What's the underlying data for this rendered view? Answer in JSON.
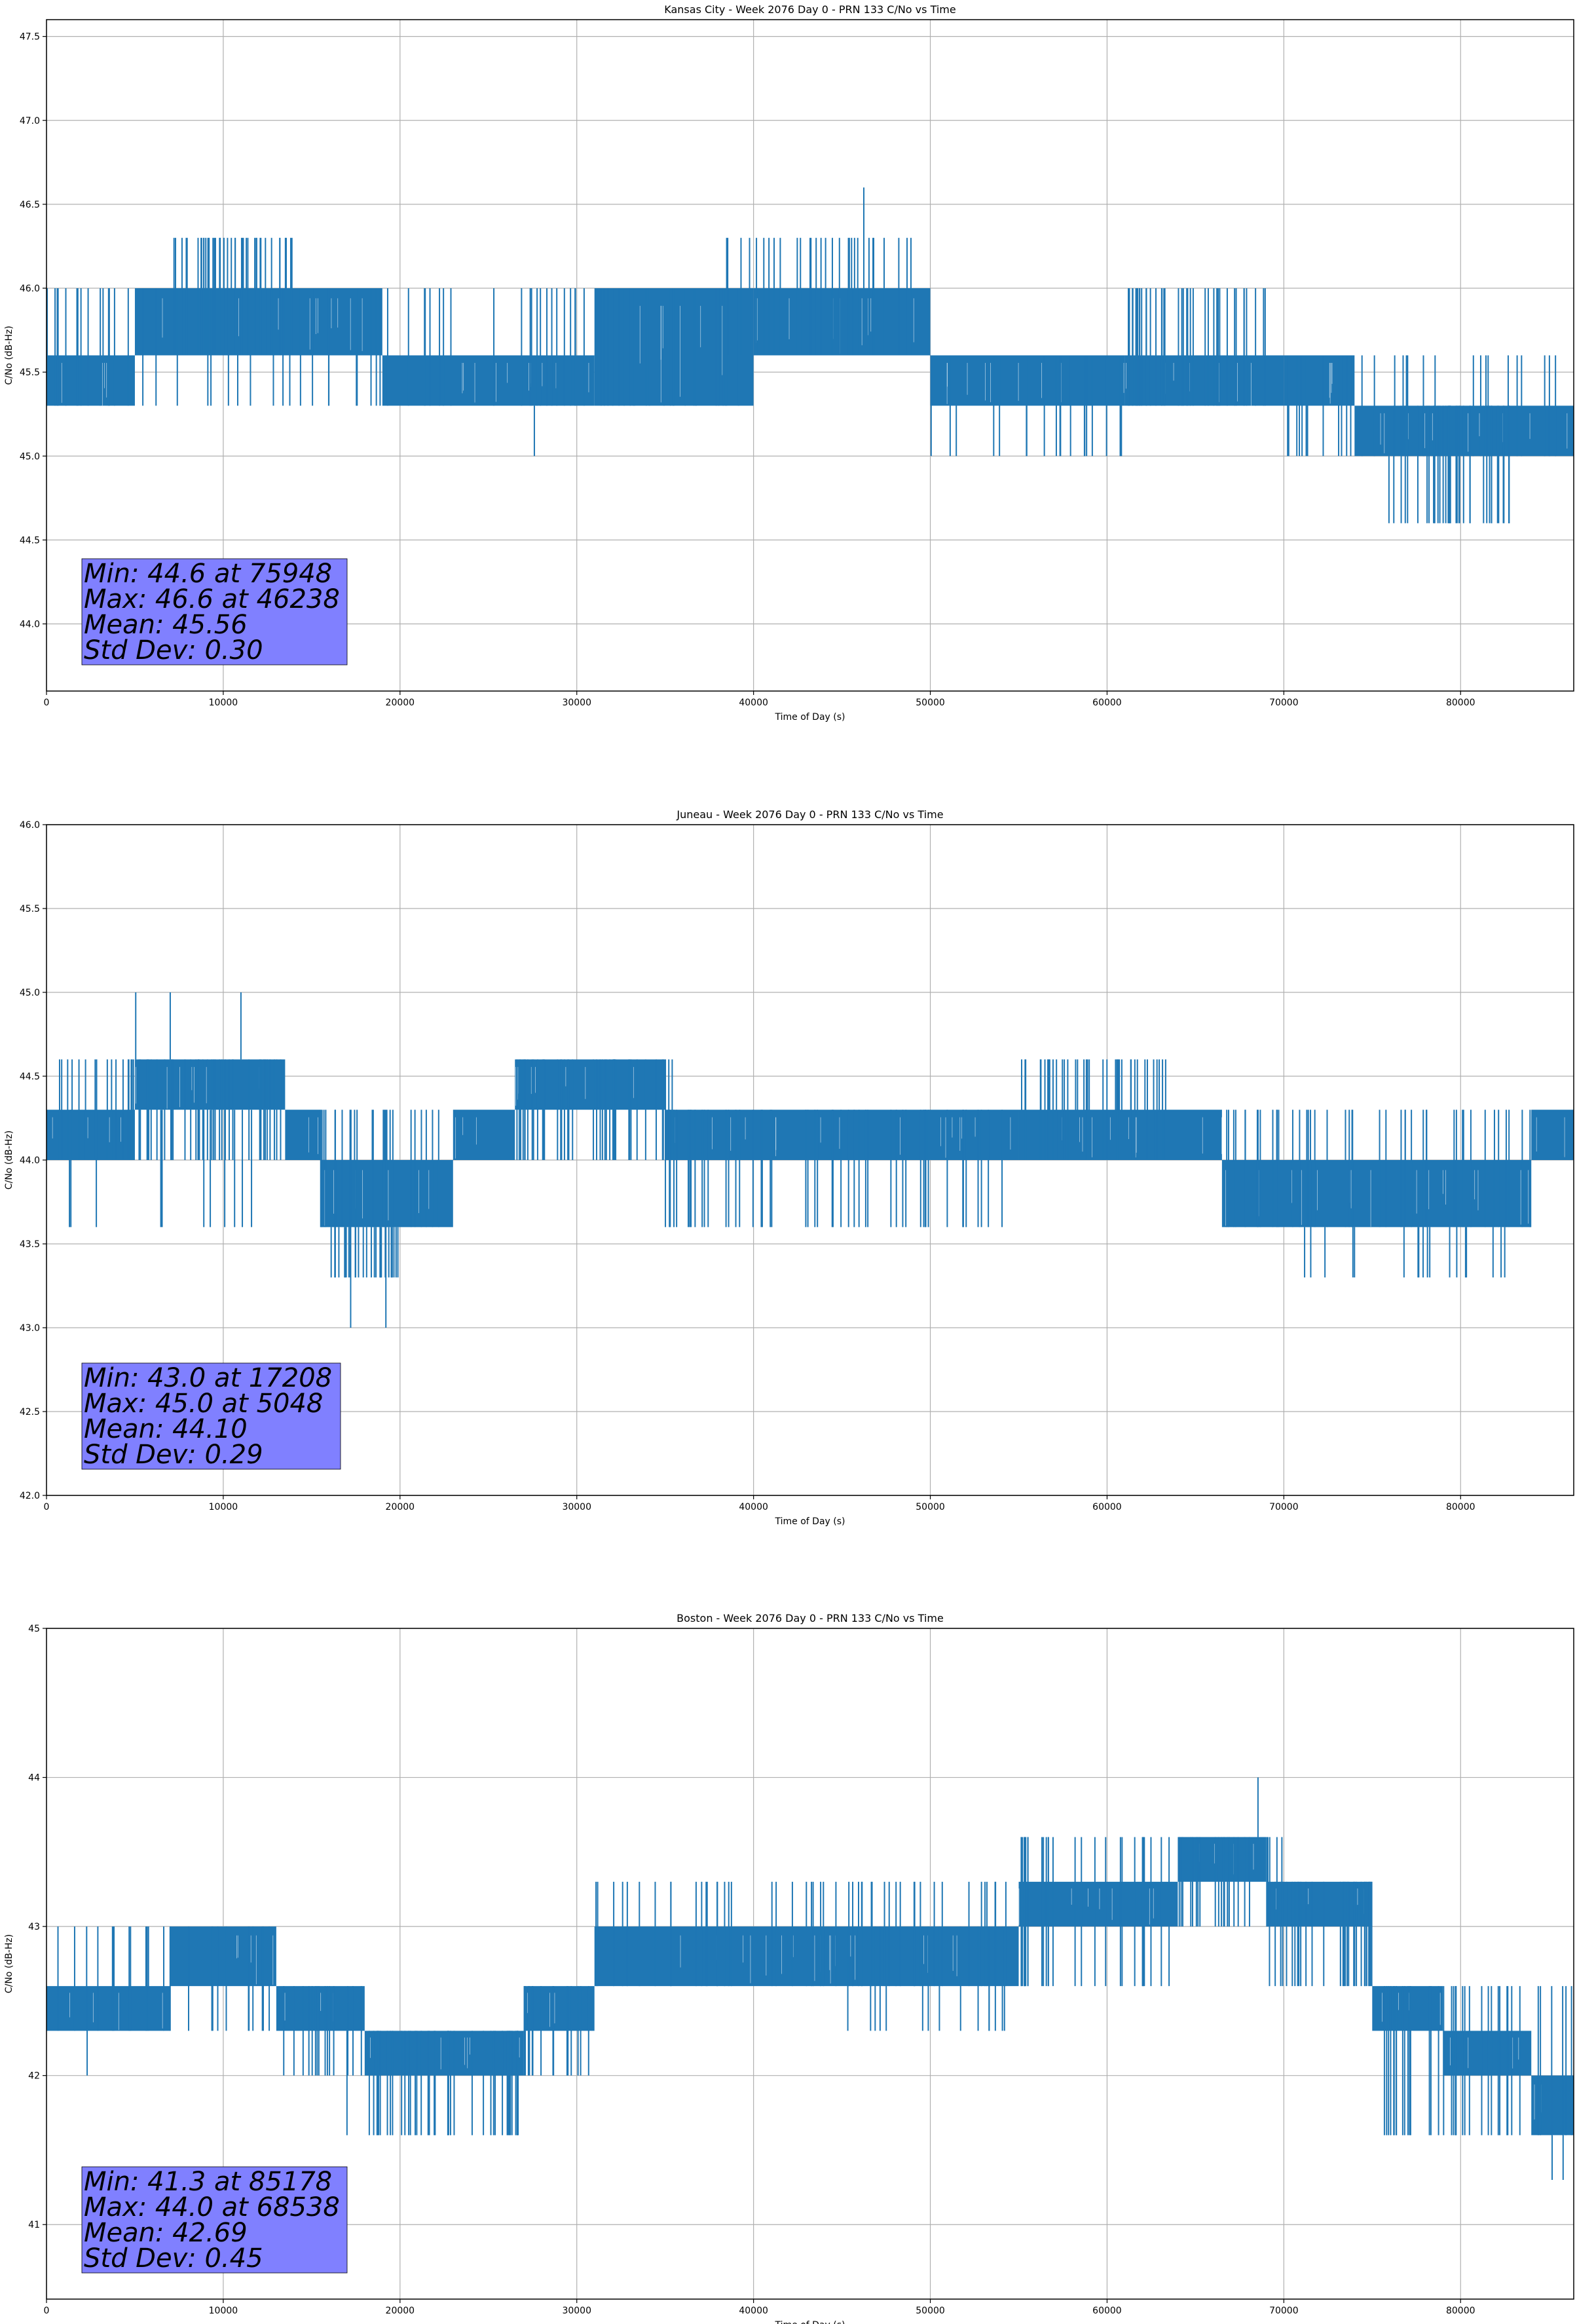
{
  "chart_data": [
    {
      "type": "line",
      "title": "Kansas City - Week 2076 Day 0 - PRN 133 C/No vs Time",
      "xlabel": "Time of Day (s)",
      "ylabel": "C/No (dB-Hz)",
      "xlim": [
        0,
        86400
      ],
      "ylim": [
        43.6,
        47.6
      ],
      "xticks": [
        0,
        10000,
        20000,
        30000,
        40000,
        50000,
        60000,
        70000,
        80000
      ],
      "xtick_labels": [
        "0",
        "10000",
        "20000",
        "30000",
        "40000",
        "50000",
        "60000",
        "70000",
        "80000"
      ],
      "yticks": [
        44.0,
        44.5,
        45.0,
        45.5,
        46.0,
        46.5,
        47.0,
        47.5
      ],
      "ytick_labels": [
        "44.0",
        "44.5",
        "45.0",
        "45.5",
        "46.0",
        "46.5",
        "47.0",
        "47.5"
      ],
      "grid": true,
      "color": "#1f77b4",
      "series": [
        {
          "segments": [
            {
              "x0": 0,
              "x1": 5000,
              "lo": 45.3,
              "hi": 45.6
            },
            {
              "x0": 5000,
              "x1": 19000,
              "lo": 45.6,
              "hi": 46.0
            },
            {
              "x0": 19000,
              "x1": 31000,
              "lo": 45.3,
              "hi": 45.6
            },
            {
              "x0": 31000,
              "x1": 40000,
              "lo": 45.3,
              "hi": 46.0
            },
            {
              "x0": 40000,
              "x1": 50000,
              "lo": 45.6,
              "hi": 46.0
            },
            {
              "x0": 50000,
              "x1": 61000,
              "lo": 45.3,
              "hi": 45.6
            },
            {
              "x0": 61000,
              "x1": 70000,
              "lo": 45.3,
              "hi": 45.6
            },
            {
              "x0": 70000,
              "x1": 74000,
              "lo": 45.3,
              "hi": 45.6
            },
            {
              "x0": 74000,
              "x1": 86400,
              "lo": 45.0,
              "hi": 45.3
            }
          ],
          "spikes": [
            {
              "x0": 0,
              "x1": 5000,
              "n": 15,
              "lo": 45.3,
              "hi": 46.0
            },
            {
              "x0": 7000,
              "x1": 14000,
              "n": 45,
              "lo": 45.6,
              "hi": 46.3
            },
            {
              "x0": 5000,
              "x1": 19000,
              "n": 20,
              "lo": 45.3,
              "hi": 46.0
            },
            {
              "x0": 19000,
              "x1": 31000,
              "n": 22,
              "lo": 45.3,
              "hi": 46.0
            },
            {
              "x0": 31000,
              "x1": 40000,
              "n": 25,
              "lo": 45.3,
              "hi": 46.0
            },
            {
              "x0": 38000,
              "x1": 49000,
              "n": 30,
              "lo": 45.6,
              "hi": 46.3
            },
            {
              "x0": 50000,
              "x1": 61000,
              "n": 20,
              "lo": 45.0,
              "hi": 45.6
            },
            {
              "x0": 61000,
              "x1": 69000,
              "n": 40,
              "lo": 45.3,
              "hi": 46.0
            },
            {
              "x0": 70000,
              "x1": 86400,
              "n": 30,
              "lo": 45.0,
              "hi": 45.6
            },
            {
              "x0": 76000,
              "x1": 83000,
              "n": 40,
              "lo": 44.6,
              "hi": 45.3
            }
          ],
          "extremes": [
            {
              "x": 75948,
              "y": 44.6
            },
            {
              "x": 46238,
              "y": 46.6
            },
            {
              "x": 27600,
              "y": 45.0
            },
            {
              "x": 3200,
              "y": 46.0
            }
          ]
        }
      ],
      "stats": {
        "lines": [
          "Min: 44.6 at 75948",
          "Max: 46.6 at 46238",
          "Mean: 45.56",
          "Std Dev: 0.30"
        ],
        "box_color": "#8080ff"
      }
    },
    {
      "type": "line",
      "title": "Juneau - Week 2076 Day 0 - PRN 133 C/No vs Time",
      "xlabel": "Time of Day (s)",
      "ylabel": "C/No (dB-Hz)",
      "xlim": [
        0,
        86400
      ],
      "ylim": [
        42.0,
        46.0
      ],
      "xticks": [
        0,
        10000,
        20000,
        30000,
        40000,
        50000,
        60000,
        70000,
        80000
      ],
      "xtick_labels": [
        "0",
        "10000",
        "20000",
        "30000",
        "40000",
        "50000",
        "60000",
        "70000",
        "80000"
      ],
      "yticks": [
        42.0,
        42.5,
        43.0,
        43.5,
        44.0,
        44.5,
        45.0,
        45.5,
        46.0
      ],
      "ytick_labels": [
        "42.0",
        "42.5",
        "43.0",
        "43.5",
        "44.0",
        "44.5",
        "45.0",
        "45.5",
        "46.0"
      ],
      "grid": true,
      "color": "#1f77b4",
      "series": [
        {
          "segments": [
            {
              "x0": 0,
              "x1": 5000,
              "lo": 44.0,
              "hi": 44.3
            },
            {
              "x0": 5000,
              "x1": 13500,
              "lo": 44.3,
              "hi": 44.6
            },
            {
              "x0": 13500,
              "x1": 15500,
              "lo": 44.0,
              "hi": 44.3
            },
            {
              "x0": 15500,
              "x1": 23000,
              "lo": 43.6,
              "hi": 44.0
            },
            {
              "x0": 23000,
              "x1": 26500,
              "lo": 44.0,
              "hi": 44.3
            },
            {
              "x0": 26500,
              "x1": 35000,
              "lo": 44.3,
              "hi": 44.6
            },
            {
              "x0": 35000,
              "x1": 55000,
              "lo": 44.0,
              "hi": 44.3
            },
            {
              "x0": 55000,
              "x1": 59000,
              "lo": 44.0,
              "hi": 44.3
            },
            {
              "x0": 59000,
              "x1": 66500,
              "lo": 44.0,
              "hi": 44.3
            },
            {
              "x0": 66500,
              "x1": 84000,
              "lo": 43.6,
              "hi": 44.0
            },
            {
              "x0": 84000,
              "x1": 86400,
              "lo": 44.0,
              "hi": 44.3
            }
          ],
          "spikes": [
            {
              "x0": 0,
              "x1": 13500,
              "n": 55,
              "lo": 44.0,
              "hi": 44.6
            },
            {
              "x0": 0,
              "x1": 12000,
              "n": 10,
              "lo": 43.6,
              "hi": 44.3
            },
            {
              "x0": 16000,
              "x1": 20000,
              "n": 30,
              "lo": 43.3,
              "hi": 43.6
            },
            {
              "x0": 15500,
              "x1": 23000,
              "n": 25,
              "lo": 43.6,
              "hi": 44.3
            },
            {
              "x0": 26500,
              "x1": 36000,
              "n": 45,
              "lo": 44.0,
              "hi": 44.6
            },
            {
              "x0": 35000,
              "x1": 55000,
              "n": 50,
              "lo": 43.6,
              "hi": 44.3
            },
            {
              "x0": 55000,
              "x1": 63500,
              "n": 40,
              "lo": 44.0,
              "hi": 44.6
            },
            {
              "x0": 66500,
              "x1": 84000,
              "n": 45,
              "lo": 43.6,
              "hi": 44.3
            },
            {
              "x0": 70500,
              "x1": 83000,
              "n": 18,
              "lo": 43.3,
              "hi": 43.6
            }
          ],
          "extremes": [
            {
              "x": 17208,
              "y": 43.0
            },
            {
              "x": 19200,
              "y": 43.0
            },
            {
              "x": 5048,
              "y": 45.0
            },
            {
              "x": 7000,
              "y": 45.0
            },
            {
              "x": 11000,
              "y": 45.0
            },
            {
              "x": 1300,
              "y": 43.6
            }
          ]
        }
      ],
      "stats": {
        "lines": [
          "Min: 43.0 at 17208",
          "Max: 45.0 at 5048",
          "Mean: 44.10",
          "Std Dev: 0.29"
        ],
        "box_color": "#8080ff"
      }
    },
    {
      "type": "line",
      "title": "Boston - Week 2076 Day 0 - PRN 133 C/No vs Time",
      "xlabel": "Time of Day (s)",
      "ylabel": "C/No (dB-Hz)",
      "xlim": [
        0,
        86400
      ],
      "ylim": [
        40.5,
        45.0
      ],
      "xticks": [
        0,
        10000,
        20000,
        30000,
        40000,
        50000,
        60000,
        70000,
        80000
      ],
      "xtick_labels": [
        "0",
        "10000",
        "20000",
        "30000",
        "40000",
        "50000",
        "60000",
        "70000",
        "80000"
      ],
      "yticks": [
        41,
        42,
        43,
        44,
        45
      ],
      "ytick_labels": [
        "41",
        "42",
        "43",
        "44",
        "45"
      ],
      "grid": true,
      "color": "#1f77b4",
      "series": [
        {
          "segments": [
            {
              "x0": 0,
              "x1": 7000,
              "lo": 42.3,
              "hi": 42.6
            },
            {
              "x0": 7000,
              "x1": 13000,
              "lo": 42.6,
              "hi": 43.0
            },
            {
              "x0": 13000,
              "x1": 18000,
              "lo": 42.3,
              "hi": 42.6
            },
            {
              "x0": 18000,
              "x1": 27000,
              "lo": 42.0,
              "hi": 42.3
            },
            {
              "x0": 27000,
              "x1": 31000,
              "lo": 42.3,
              "hi": 42.6
            },
            {
              "x0": 31000,
              "x1": 55000,
              "lo": 42.6,
              "hi": 43.0
            },
            {
              "x0": 55000,
              "x1": 64000,
              "lo": 43.0,
              "hi": 43.3
            },
            {
              "x0": 64000,
              "x1": 69000,
              "lo": 43.3,
              "hi": 43.6
            },
            {
              "x0": 69000,
              "x1": 75000,
              "lo": 43.0,
              "hi": 43.3
            },
            {
              "x0": 75000,
              "x1": 79000,
              "lo": 42.3,
              "hi": 42.6
            },
            {
              "x0": 79000,
              "x1": 84000,
              "lo": 42.0,
              "hi": 42.3
            },
            {
              "x0": 84000,
              "x1": 86400,
              "lo": 41.6,
              "hi": 42.0
            }
          ],
          "spikes": [
            {
              "x0": 0,
              "x1": 13000,
              "n": 25,
              "lo": 42.3,
              "hi": 43.0
            },
            {
              "x0": 13000,
              "x1": 18000,
              "n": 15,
              "lo": 42.0,
              "hi": 42.6
            },
            {
              "x0": 18000,
              "x1": 27000,
              "n": 40,
              "lo": 41.6,
              "hi": 42.3
            },
            {
              "x0": 27000,
              "x1": 31000,
              "n": 15,
              "lo": 42.0,
              "hi": 42.6
            },
            {
              "x0": 31000,
              "x1": 55000,
              "n": 50,
              "lo": 42.6,
              "hi": 43.3
            },
            {
              "x0": 45000,
              "x1": 55000,
              "n": 15,
              "lo": 42.3,
              "hi": 43.0
            },
            {
              "x0": 55000,
              "x1": 64000,
              "n": 30,
              "lo": 42.6,
              "hi": 43.6
            },
            {
              "x0": 64000,
              "x1": 70000,
              "n": 25,
              "lo": 43.0,
              "hi": 43.6
            },
            {
              "x0": 69000,
              "x1": 75000,
              "n": 30,
              "lo": 42.6,
              "hi": 43.3
            },
            {
              "x0": 75000,
              "x1": 86400,
              "n": 40,
              "lo": 41.6,
              "hi": 42.6
            }
          ],
          "extremes": [
            {
              "x": 85178,
              "y": 41.3
            },
            {
              "x": 85800,
              "y": 41.3
            },
            {
              "x": 68538,
              "y": 44.0
            },
            {
              "x": 2300,
              "y": 42.0
            },
            {
              "x": 17000,
              "y": 41.6
            }
          ]
        }
      ],
      "stats": {
        "lines": [
          "Min: 41.3 at 85178",
          "Max: 44.0 at 68538",
          "Mean: 42.69",
          "Std Dev: 0.45"
        ],
        "box_color": "#8080ff"
      }
    }
  ]
}
